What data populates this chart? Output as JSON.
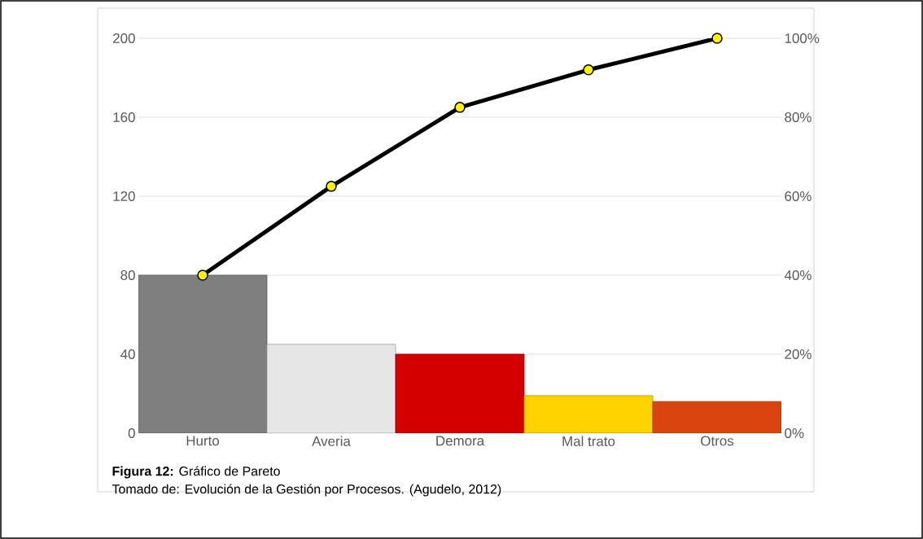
{
  "chart_data": {
    "type": "bar",
    "categories": [
      "Hurto",
      "Averia",
      "Demora",
      "Mal trato",
      "Otros"
    ],
    "series": [
      {
        "colors": [
          "#7f7f7f",
          "#e6e6e6",
          "#d40000",
          "#ffd200",
          "#d9440f"
        ],
        "values": [
          80,
          45,
          40,
          19,
          16
        ]
      },
      {
        "type": "line",
        "axis": "y2",
        "color": "#000000",
        "values": [
          40,
          62.5,
          82.5,
          92,
          100
        ]
      }
    ],
    "ylim": [
      0,
      200
    ],
    "yticks": [
      0,
      40,
      80,
      120,
      160,
      200
    ],
    "y2lim": [
      0,
      100
    ],
    "y2ticks": [
      {
        "value": 0,
        "label": "0%"
      },
      {
        "value": 20,
        "label": "20%"
      },
      {
        "value": 40,
        "label": "40%"
      },
      {
        "value": 60,
        "label": "60%"
      },
      {
        "value": 80,
        "label": "80%"
      },
      {
        "value": 100,
        "label": "100%"
      }
    ],
    "grid": "y",
    "marker": "circle",
    "annotations": [
      "**Figura 12:** Gráfico de Pareto",
      "Tomado de: Evolución de la Gestión por Procesos. (Agudelo, 2012)"
    ]
  }
}
